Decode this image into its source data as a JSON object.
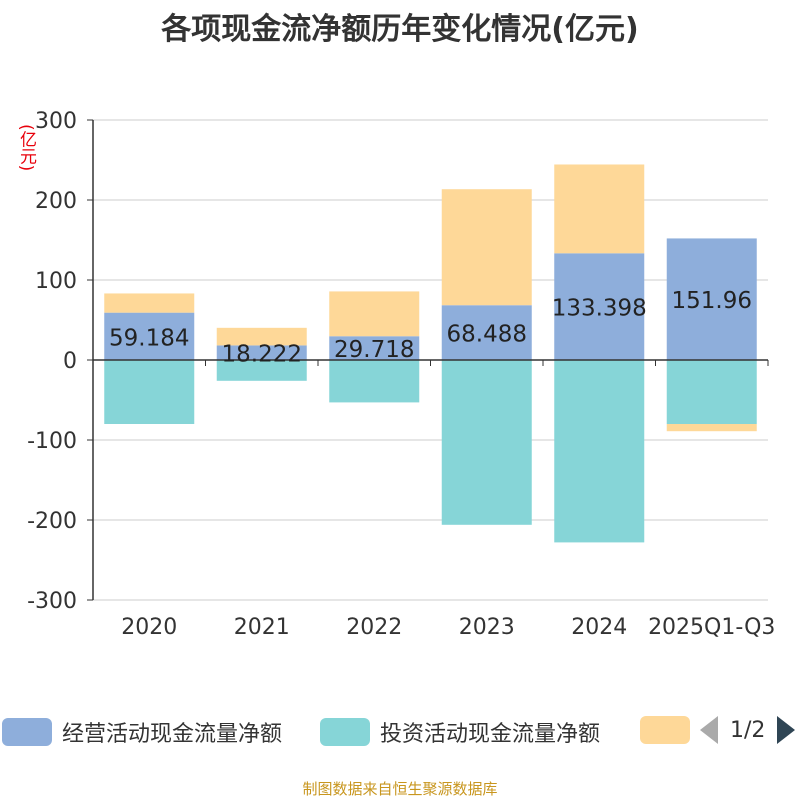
{
  "title": "各项现金流净额历年变化情况(亿元)",
  "unit_label": "(亿元)",
  "source": "制图数据来自恒生聚源数据库",
  "colors": {
    "operating": "#8eaedb",
    "investing": "#86d5d7",
    "financing": "#fed898",
    "axis": "#333333",
    "grid": "#cccccc"
  },
  "legend": {
    "items": [
      {
        "label": "经营活动现金流量净额",
        "color": "#8eaedb"
      },
      {
        "label": "投资活动现金流量净额",
        "color": "#86d5d7"
      },
      {
        "label": "",
        "color": "#fed898"
      }
    ],
    "page_indicator": "1/2"
  },
  "chart_data": {
    "type": "bar",
    "stacked": true,
    "title": "各项现金流净额历年变化情况(亿元)",
    "ylabel": "(亿元)",
    "ylim": [
      -300,
      300
    ],
    "yticks": [
      300,
      200,
      100,
      0,
      -100,
      -200,
      -300
    ],
    "grid": true,
    "categories": [
      "2020",
      "2021",
      "2022",
      "2023",
      "2024",
      "2025Q1-Q3"
    ],
    "series": [
      {
        "name": "经营活动现金流量净额",
        "color": "#8eaedb",
        "values": [
          59.184,
          18.222,
          29.718,
          68.488,
          133.398,
          151.96
        ],
        "labels": [
          "59.184",
          "18.222",
          "29.718",
          "68.488",
          "133.398",
          "151.96"
        ]
      },
      {
        "name": "投资活动现金流量净额",
        "color": "#86d5d7",
        "values": [
          -80,
          -26,
          -53,
          -206,
          -228,
          -80
        ]
      },
      {
        "color": "#fed898",
        "values": [
          24,
          22,
          56,
          145,
          111,
          -9
        ]
      }
    ]
  }
}
